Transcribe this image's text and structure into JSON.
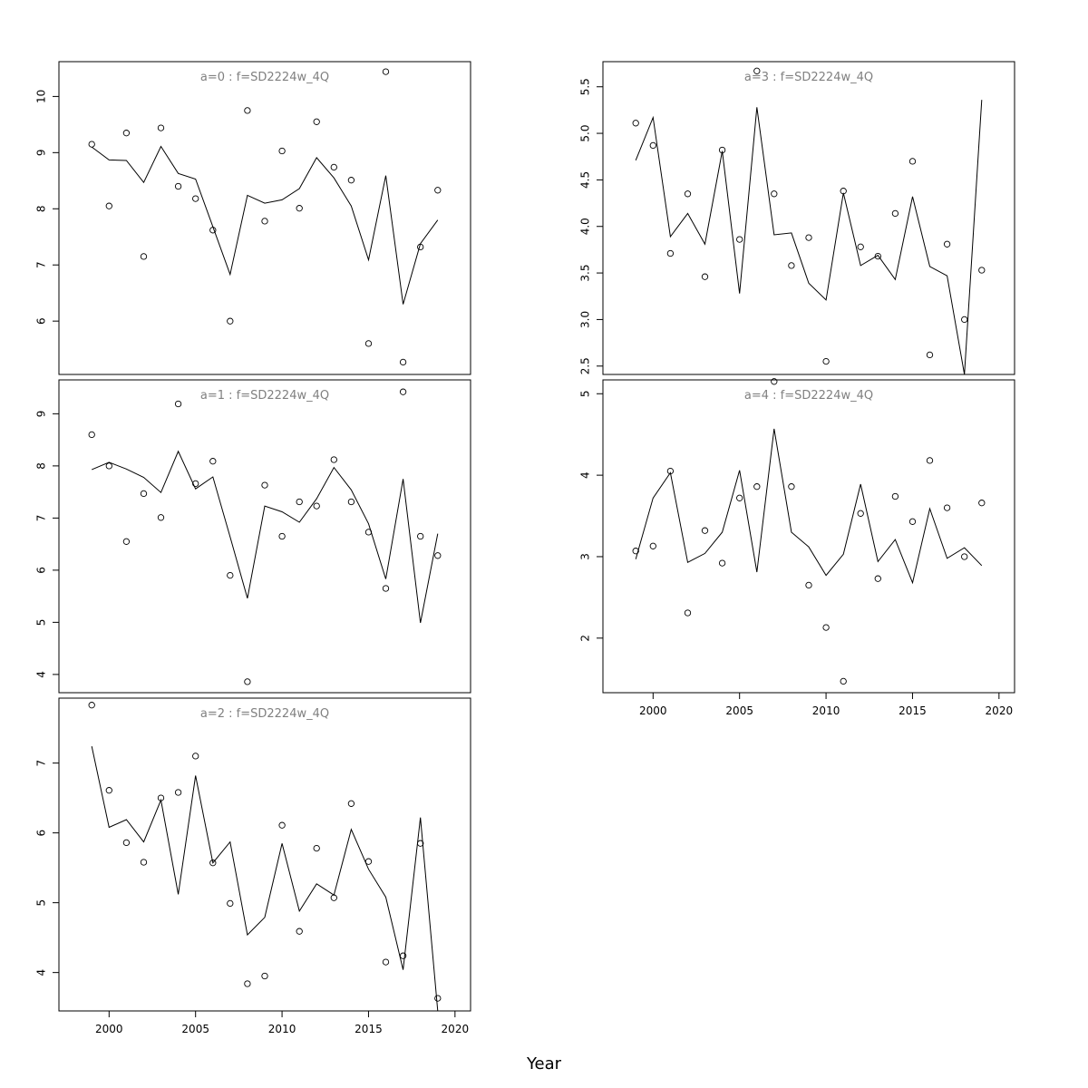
{
  "chart_data": {
    "type": "line",
    "xlabel": "Year",
    "x": [
      1999,
      2000,
      2001,
      2002,
      2003,
      2004,
      2005,
      2006,
      2007,
      2008,
      2009,
      2010,
      2011,
      2012,
      2013,
      2014,
      2015,
      2016,
      2017,
      2018,
      2019
    ],
    "xlim": [
      1997.1,
      2020.9
    ],
    "xticks": [
      2000,
      2005,
      2010,
      2015,
      2020
    ],
    "panels": [
      {
        "title": "a=0 : f=SD2224w_4Q",
        "ylim": [
          5.05,
          10.62
        ],
        "yticks": [
          6,
          7,
          8,
          9,
          10
        ],
        "observed": [
          9.15,
          8.05,
          9.35,
          7.15,
          9.44,
          8.4,
          8.18,
          7.62,
          6.0,
          9.75,
          7.78,
          9.03,
          8.01,
          9.55,
          8.74,
          8.51,
          5.6,
          10.44,
          5.27,
          7.32,
          8.33
        ],
        "fitted": [
          9.1,
          8.87,
          8.86,
          8.47,
          9.11,
          8.63,
          8.53,
          7.68,
          6.83,
          8.24,
          8.1,
          8.16,
          8.36,
          8.91,
          8.55,
          8.05,
          7.09,
          8.59,
          6.3,
          7.38,
          7.8
        ]
      },
      {
        "title": "a=1 : f=SD2224w_4Q",
        "ylim": [
          3.65,
          9.65
        ],
        "yticks": [
          4,
          5,
          6,
          7,
          8,
          9
        ],
        "observed": [
          8.6,
          8.0,
          6.55,
          7.47,
          7.01,
          9.19,
          7.66,
          8.09,
          5.9,
          3.86,
          7.63,
          6.65,
          7.31,
          7.23,
          8.12,
          7.31,
          6.73,
          5.65,
          9.42,
          6.65,
          6.28
        ],
        "fitted": [
          7.93,
          8.07,
          7.94,
          7.78,
          7.49,
          8.28,
          7.56,
          7.79,
          6.64,
          5.46,
          7.23,
          7.12,
          6.92,
          7.37,
          7.97,
          7.54,
          6.89,
          5.83,
          7.75,
          4.99,
          6.7
        ]
      },
      {
        "title": "a=2 : f=SD2224w_4Q",
        "ylim": [
          3.45,
          7.93
        ],
        "yticks": [
          4,
          5,
          6,
          7
        ],
        "observed": [
          7.83,
          6.61,
          5.86,
          5.58,
          6.5,
          6.58,
          7.1,
          5.57,
          4.99,
          3.84,
          3.95,
          6.11,
          4.59,
          5.78,
          5.07,
          6.42,
          5.59,
          4.15,
          4.24,
          5.85,
          3.63
        ],
        "fitted": [
          7.24,
          6.08,
          6.19,
          5.87,
          6.47,
          5.12,
          6.82,
          5.57,
          5.87,
          4.54,
          4.79,
          5.85,
          4.88,
          5.27,
          5.11,
          6.05,
          5.48,
          5.08,
          4.04,
          6.22,
          3.45
        ]
      },
      {
        "title": "a=3 : f=SD2224w_4Q",
        "ylim": [
          2.41,
          5.77
        ],
        "yticks": [
          2.5,
          3.0,
          3.5,
          4.0,
          4.5,
          5.0,
          5.5
        ],
        "ytick_labels": [
          "2.5",
          "3.0",
          "3.5",
          "4.0",
          "4.5",
          "5.0",
          "5.5"
        ],
        "observed": [
          5.11,
          4.87,
          3.71,
          4.35,
          3.46,
          4.82,
          3.86,
          5.67,
          4.35,
          3.58,
          3.88,
          2.55,
          4.38,
          3.78,
          3.68,
          4.14,
          4.7,
          2.62,
          3.81,
          3.0,
          3.53
        ],
        "fitted": [
          4.71,
          5.17,
          3.89,
          4.14,
          3.81,
          4.81,
          3.28,
          5.28,
          3.91,
          3.93,
          3.39,
          3.21,
          4.36,
          3.58,
          3.69,
          3.43,
          4.32,
          3.57,
          3.47,
          2.41,
          5.36
        ]
      },
      {
        "title": "a=4 : f=SD2224w_4Q",
        "ylim": [
          1.33,
          5.17
        ],
        "yticks": [
          2,
          3,
          4,
          5
        ],
        "observed": [
          3.07,
          3.13,
          4.05,
          2.31,
          3.32,
          2.92,
          3.72,
          3.86,
          5.15,
          3.86,
          2.65,
          2.13,
          1.47,
          3.53,
          2.73,
          3.74,
          3.43,
          4.18,
          3.6,
          3.0,
          3.66
        ],
        "fitted": [
          2.97,
          3.72,
          4.03,
          2.93,
          3.04,
          3.3,
          4.06,
          2.81,
          4.57,
          3.3,
          3.12,
          2.77,
          3.03,
          3.89,
          2.94,
          3.21,
          2.68,
          3.59,
          2.98,
          3.11,
          2.89
        ]
      }
    ]
  }
}
